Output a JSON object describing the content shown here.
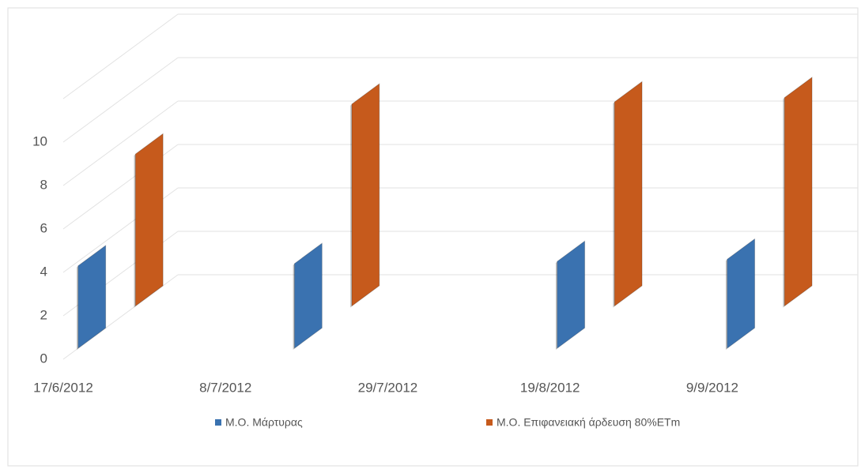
{
  "chart_data": {
    "type": "bar3d",
    "x": [
      "2012-06-17",
      "2012-07-15",
      "2012-08-18",
      "2012-09-09"
    ],
    "series": [
      {
        "name": "Μ.Ο. Μάρτυρας",
        "color": "#3a72b0",
        "values": [
          3.8,
          3.9,
          4.0,
          4.1
        ]
      },
      {
        "name": "Μ.Ο. Επιφανειακή άρδευση 80%ETm",
        "color": "#c65a1c",
        "values": [
          7.0,
          9.3,
          9.4,
          9.6
        ]
      }
    ],
    "xlim": [
      "2012-06-17",
      "2012-09-13"
    ],
    "xticks": [
      {
        "value": "2012-06-17",
        "label": "17/6/2012"
      },
      {
        "value": "2012-07-08",
        "label": "8/7/2012"
      },
      {
        "value": "2012-07-29",
        "label": "29/7/2012"
      },
      {
        "value": "2012-08-19",
        "label": "19/8/2012"
      },
      {
        "value": "2012-09-09",
        "label": "9/9/2012"
      }
    ],
    "ylim": [
      0,
      12
    ],
    "yticks": [
      0,
      2,
      4,
      6,
      8,
      10
    ],
    "grid": true,
    "legend": "bottom"
  }
}
